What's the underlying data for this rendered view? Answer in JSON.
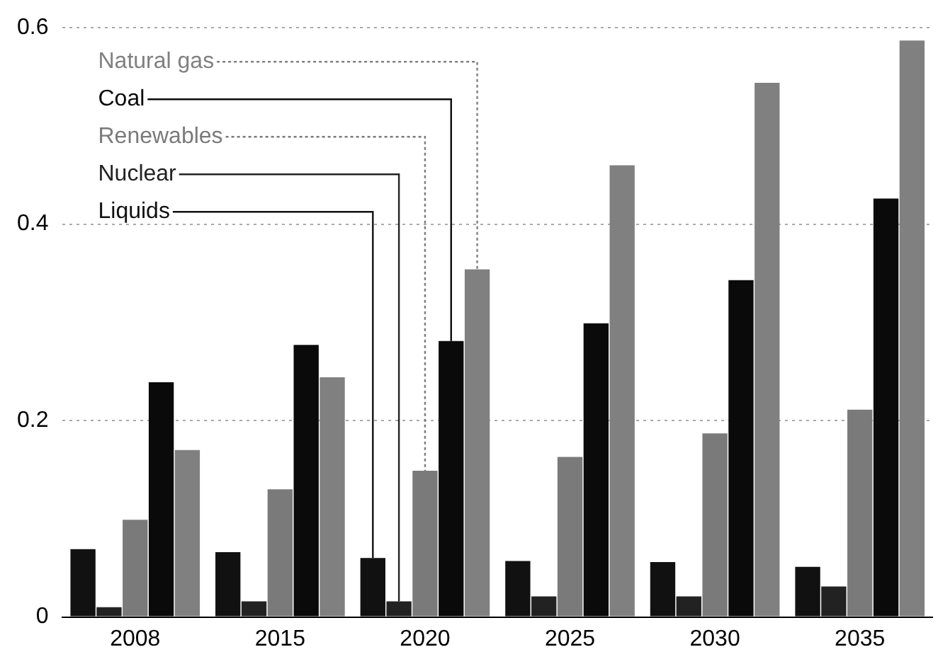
{
  "chart_data": {
    "type": "bar",
    "categories": [
      "2008",
      "2015",
      "2020",
      "2025",
      "2030",
      "2035"
    ],
    "series": [
      {
        "name": "Liquids",
        "color": "#111111",
        "values": [
          0.069,
          0.066,
          0.06,
          0.057,
          0.056,
          0.051
        ]
      },
      {
        "name": "Nuclear",
        "color": "#222222",
        "values": [
          0.01,
          0.016,
          0.016,
          0.021,
          0.021,
          0.031
        ]
      },
      {
        "name": "Renewables",
        "color": "#7a7a7a",
        "values": [
          0.099,
          0.13,
          0.149,
          0.163,
          0.187,
          0.211
        ]
      },
      {
        "name": "Coal",
        "color": "#0a0a0a",
        "values": [
          0.239,
          0.277,
          0.281,
          0.299,
          0.343,
          0.426
        ]
      },
      {
        "name": "Natural gas",
        "color": "#808080",
        "values": [
          0.17,
          0.244,
          0.354,
          0.46,
          0.544,
          0.587
        ]
      }
    ],
    "ylim": [
      0,
      0.6
    ],
    "yticks": [
      0,
      0.2,
      0.4,
      0.6
    ],
    "grid": "y",
    "legend": "top left"
  }
}
